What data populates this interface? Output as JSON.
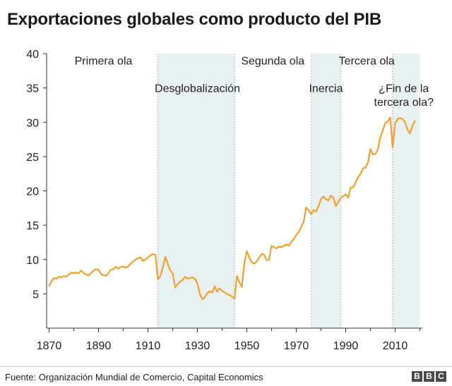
{
  "title": "Exportaciones globales como producto del PIB",
  "source": "Fuente: Organización Mundial de Comercio, Capital Economics",
  "logo": [
    "B",
    "B",
    "C"
  ],
  "colors": {
    "line": "#f0a030",
    "band": "#e8f0f2",
    "divider": "#a8b4bc",
    "axis": "#333333"
  },
  "chart_data": {
    "type": "line",
    "title": "Exportaciones globales como producto del PIB",
    "xlabel": "",
    "ylabel": "",
    "xlim": [
      1869,
      2021
    ],
    "ylim": [
      0,
      40
    ],
    "xticks": [
      1870,
      1890,
      1910,
      1930,
      1950,
      1970,
      1990,
      2010
    ],
    "yticks": [
      5,
      10,
      15,
      20,
      25,
      30,
      35,
      40
    ],
    "grid": false,
    "shaded_periods": [
      [
        1914,
        1945
      ],
      [
        1976,
        1988
      ],
      [
        2009,
        2020
      ]
    ],
    "dividers": [
      1914,
      1945,
      1976,
      1988,
      2009
    ],
    "period_labels": [
      {
        "text": "Primera ola",
        "year": 1892,
        "value": 39.0
      },
      {
        "text": "Desglobalización",
        "year": 1930,
        "value": 35.0
      },
      {
        "text": "Segunda ola",
        "year": 1960.5,
        "value": 39.0
      },
      {
        "text": "Inercia",
        "year": 1982,
        "value": 35.0
      },
      {
        "text": "Tercera ola",
        "year": 1998.5,
        "value": 39.0
      },
      {
        "text": "¿Fin de la",
        "year": 2013.5,
        "value": 35.0
      },
      {
        "text": "tercera ola?",
        "year": 2013.5,
        "value": 33.0
      }
    ],
    "series": [
      {
        "x": [
          1870,
          1871,
          1872,
          1873,
          1874,
          1875,
          1876,
          1877,
          1878,
          1879,
          1880,
          1881,
          1882,
          1883,
          1884,
          1885,
          1886,
          1887,
          1888,
          1889,
          1890,
          1891,
          1892,
          1893,
          1894,
          1895,
          1896,
          1897,
          1898,
          1899,
          1900,
          1901,
          1902,
          1903,
          1904,
          1905,
          1906,
          1907,
          1908,
          1909,
          1910,
          1911,
          1912,
          1913,
          1914,
          1915,
          1916,
          1917,
          1918,
          1919,
          1920,
          1921,
          1922,
          1923,
          1924,
          1925,
          1926,
          1927,
          1928,
          1929,
          1930,
          1931,
          1932,
          1933,
          1934,
          1935,
          1936,
          1937,
          1938,
          1939,
          1940,
          1941,
          1942,
          1943,
          1944,
          1945,
          1946,
          1947,
          1948,
          1949,
          1950,
          1951,
          1952,
          1953,
          1954,
          1955,
          1956,
          1957,
          1958,
          1959,
          1960,
          1961,
          1962,
          1963,
          1964,
          1965,
          1966,
          1967,
          1968,
          1969,
          1970,
          1971,
          1972,
          1973,
          1974,
          1975,
          1976,
          1977,
          1978,
          1979,
          1980,
          1981,
          1982,
          1983,
          1984,
          1985,
          1986,
          1987,
          1988,
          1989,
          1990,
          1991,
          1992,
          1993,
          1994,
          1995,
          1996,
          1997,
          1998,
          1999,
          2000,
          2001,
          2002,
          2003,
          2004,
          2005,
          2006,
          2007,
          2008,
          2009,
          2010,
          2011,
          2012,
          2013,
          2014,
          2015,
          2016,
          2017,
          2018
        ],
        "values": [
          6.2,
          6.8,
          7.3,
          7.2,
          7.5,
          7.4,
          7.6,
          7.5,
          7.8,
          8.1,
          8.0,
          8.1,
          8.0,
          8.4,
          8.0,
          7.8,
          7.7,
          8.0,
          8.4,
          8.6,
          8.5,
          7.9,
          7.7,
          7.6,
          8.0,
          8.5,
          8.6,
          8.9,
          8.7,
          8.9,
          9.0,
          8.8,
          9.0,
          9.4,
          9.7,
          10.0,
          10.2,
          10.3,
          9.8,
          10.0,
          10.3,
          10.6,
          10.8,
          10.7,
          7.1,
          7.6,
          8.8,
          10.4,
          9.4,
          8.4,
          8.0,
          5.9,
          6.4,
          6.8,
          7.0,
          7.5,
          7.2,
          7.3,
          7.4,
          7.2,
          6.5,
          5.0,
          4.2,
          4.5,
          5.1,
          5.4,
          5.2,
          6.1,
          5.3,
          5.8,
          5.4,
          5.2,
          5.0,
          4.8,
          4.6,
          4.3,
          7.6,
          6.7,
          6.0,
          9.5,
          11.2,
          10.3,
          9.6,
          9.4,
          9.7,
          10.3,
          10.8,
          10.7,
          9.9,
          10.0,
          12.0,
          11.8,
          11.6,
          11.9,
          11.8,
          12.0,
          12.2,
          12.0,
          12.6,
          13.0,
          13.6,
          14.0,
          14.8,
          15.5,
          17.6,
          17.2,
          16.6,
          17.2,
          17.0,
          17.8,
          18.8,
          19.2,
          18.8,
          18.6,
          19.3,
          19.0,
          17.8,
          18.4,
          19.0,
          19.2,
          19.5,
          19.0,
          20.5,
          20.5,
          21.2,
          22.0,
          22.5,
          23.3,
          23.4,
          24.1,
          26.1,
          25.3,
          25.4,
          26.0,
          27.8,
          28.8,
          29.9,
          30.1,
          30.7,
          26.3,
          29.8,
          30.5,
          30.6,
          30.5,
          30.0,
          28.9,
          28.4,
          29.5,
          30.2
        ]
      }
    ]
  }
}
